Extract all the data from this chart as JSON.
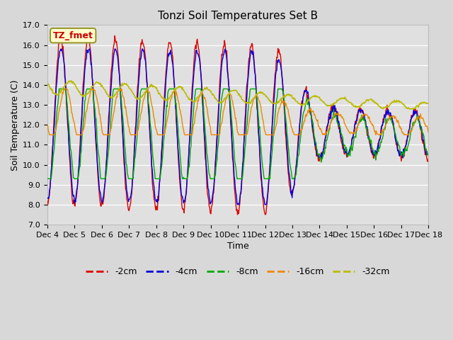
{
  "title": "Tonzi Soil Temperatures Set B",
  "xlabel": "Time",
  "ylabel": "Soil Temperature (C)",
  "ylim": [
    7.0,
    17.0
  ],
  "yticks": [
    7.0,
    8.0,
    9.0,
    10.0,
    11.0,
    12.0,
    13.0,
    14.0,
    15.0,
    16.0,
    17.0
  ],
  "xtick_labels": [
    "Dec 4",
    "Dec 5",
    "Dec 6",
    "Dec 7",
    "Dec 8",
    "Dec 9",
    "Dec 10",
    "Dec 11",
    "Dec 12",
    "Dec 13",
    "Dec 14",
    "Dec 15",
    "Dec 16",
    "Dec 17",
    "Dec 18"
  ],
  "colors": {
    "-2cm": "#dd0000",
    "-4cm": "#0000dd",
    "-8cm": "#00aa00",
    "-16cm": "#ee8800",
    "-32cm": "#bbbb00"
  },
  "legend_label": "TZ_fmet",
  "legend_bg": "#ffffcc",
  "legend_border": "#999933",
  "fig_bg": "#d8d8d8",
  "plot_bg": "#e0e0e0",
  "grid_color": "#ffffff",
  "annotation_color": "#cc0000",
  "title_fontsize": 11,
  "axis_fontsize": 9,
  "tick_fontsize": 8
}
